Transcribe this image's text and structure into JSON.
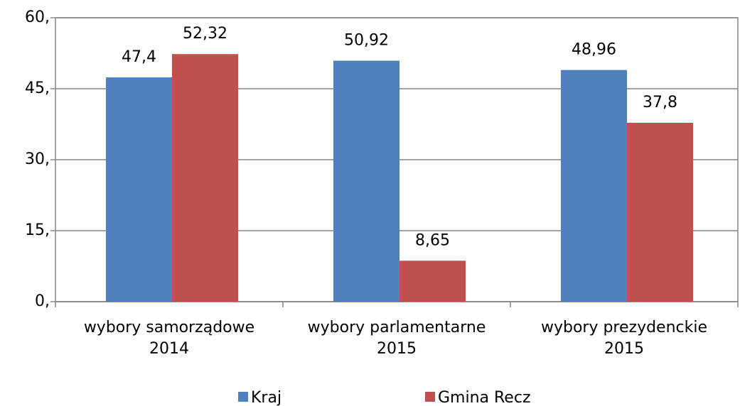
{
  "chart_data": {
    "type": "bar",
    "categories": [
      "wybory samorządowe\n2014",
      "wybory parlamentarne\n2015",
      "wybory prezydenckie\n2015"
    ],
    "series": [
      {
        "name": "Kraj",
        "color": "#4f81bd",
        "values": [
          47.4,
          50.92,
          48.96
        ],
        "value_labels": [
          "47,4",
          "50,92",
          "48,96"
        ]
      },
      {
        "name": "Gmina Recz",
        "color": "#c0504d",
        "values": [
          52.32,
          8.65,
          37.8
        ],
        "value_labels": [
          "52,32",
          "8,65",
          "37,8"
        ]
      }
    ],
    "ylim": [
      0,
      60
    ],
    "yticks": [
      {
        "value": 0,
        "label": "0,"
      },
      {
        "value": 15,
        "label": "15,"
      },
      {
        "value": 30,
        "label": "30,"
      },
      {
        "value": 45,
        "label": "45,"
      },
      {
        "value": 60,
        "label": "60,"
      }
    ],
    "grid": true,
    "legend": "bottom"
  }
}
